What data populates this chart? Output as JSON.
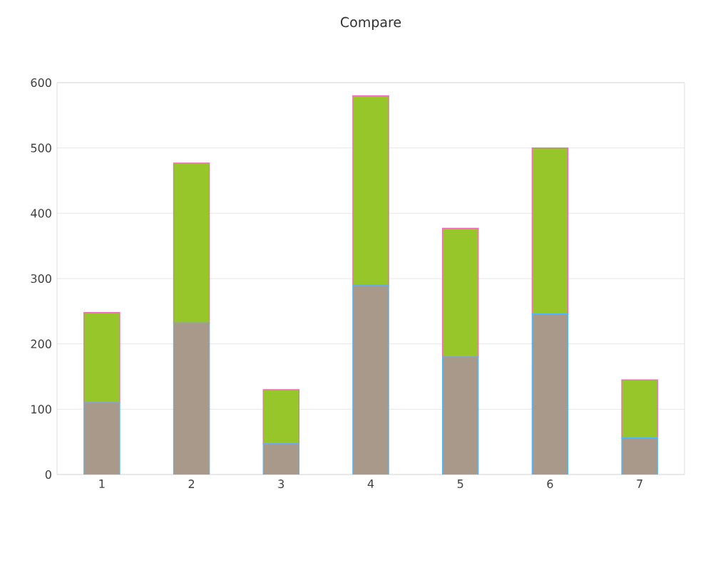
{
  "chart_data": {
    "type": "bar",
    "title": "Compare",
    "stacked": true,
    "categories": [
      "1",
      "2",
      "3",
      "4",
      "5",
      "6",
      "7"
    ],
    "series": [
      {
        "color": "#a8998a",
        "values": [
          110,
          232,
          47,
          290,
          180,
          246,
          56
        ]
      },
      {
        "color": "#96c62a",
        "values": [
          138,
          245,
          83,
          290,
          197,
          254,
          89
        ]
      }
    ],
    "ylim": [
      0,
      600
    ],
    "yticks": [
      0,
      100,
      200,
      300,
      400,
      500,
      600
    ],
    "grid": "y"
  }
}
